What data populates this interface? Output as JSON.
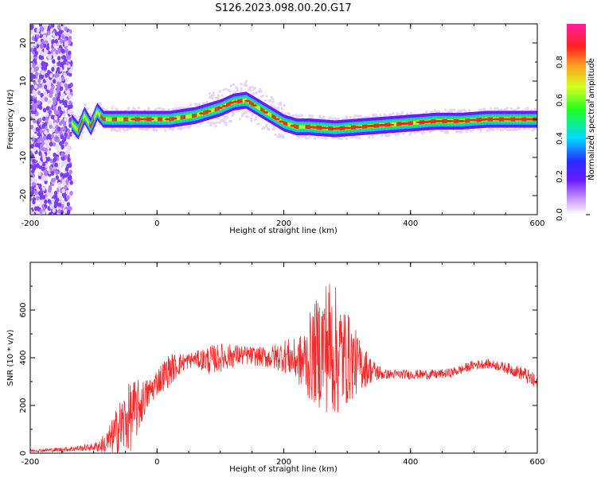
{
  "title": "S126.2023.098.00.20.G17",
  "colors": {
    "snr_line": "#ee2a2a",
    "axis": "#000000",
    "background": "#ffffff"
  },
  "chart_data": [
    {
      "type": "heatmap",
      "xlabel": "Height of straight line (km)",
      "ylabel": "Frequency (Hz)",
      "xlim": [
        -200,
        600
      ],
      "ylim": [
        -25,
        25
      ],
      "xticks": [
        -200,
        0,
        200,
        400,
        600
      ],
      "yticks": [
        -20,
        -10,
        0,
        10,
        20
      ],
      "colorbar": {
        "label": "Normalized spectral amplitude",
        "range": [
          0,
          1
        ],
        "ticks": [
          "0.0",
          "0.2",
          "0.4",
          "0.6",
          "0.8"
        ],
        "colormap": "rainbow (white-purple-blue-cyan-green-yellow-orange-red-magenta)"
      },
      "ridge": {
        "x": [
          -135,
          -125,
          -115,
          -105,
          -95,
          -85,
          -60,
          -20,
          20,
          60,
          80,
          100,
          120,
          140,
          160,
          180,
          200,
          220,
          240,
          280,
          320,
          360,
          400,
          440,
          480,
          520,
          560,
          600
        ],
        "y": [
          -1,
          -3,
          1,
          -2,
          2,
          0,
          0,
          0,
          0,
          1,
          2,
          3,
          4.5,
          5,
          3,
          1,
          -1,
          -2,
          -2,
          -2.5,
          -2,
          -1.5,
          -1,
          -0.5,
          -0.5,
          0,
          0,
          0
        ]
      }
    },
    {
      "type": "line",
      "xlabel": "Height of straight line (km)",
      "ylabel": "SNR (10 * v/v)",
      "xlim": [
        -200,
        600
      ],
      "ylim": [
        0,
        800
      ],
      "xticks": [
        -200,
        0,
        200,
        400,
        600
      ],
      "yticks": [
        0,
        200,
        400,
        600
      ],
      "series": [
        {
          "x": [
            -200,
            -150,
            -100,
            -80,
            -70,
            -60,
            -50,
            -40,
            -30,
            -20,
            -10,
            0,
            20,
            40,
            60,
            80,
            100,
            120,
            140,
            160,
            180,
            200,
            220,
            230,
            240,
            250,
            260,
            270,
            280,
            290,
            300,
            320,
            340,
            360,
            380,
            400,
            420,
            440,
            460,
            480,
            500,
            520,
            540,
            560,
            580,
            600
          ],
          "y": [
            10,
            15,
            25,
            40,
            70,
            100,
            130,
            160,
            190,
            230,
            260,
            300,
            350,
            380,
            395,
            390,
            400,
            410,
            410,
            405,
            400,
            410,
            390,
            380,
            400,
            420,
            440,
            460,
            430,
            410,
            400,
            370,
            345,
            330,
            330,
            330,
            330,
            330,
            335,
            350,
            370,
            375,
            365,
            350,
            330,
            290
          ],
          "envelope": [
            5,
            10,
            15,
            50,
            80,
            120,
            140,
            150,
            120,
            80,
            60,
            60,
            70,
            40,
            30,
            60,
            60,
            50,
            40,
            40,
            50,
            70,
            90,
            130,
            180,
            220,
            260,
            300,
            280,
            250,
            200,
            110,
            50,
            20,
            20,
            20,
            20,
            20,
            20,
            20,
            20,
            20,
            20,
            25,
            30,
            40
          ]
        }
      ]
    }
  ]
}
